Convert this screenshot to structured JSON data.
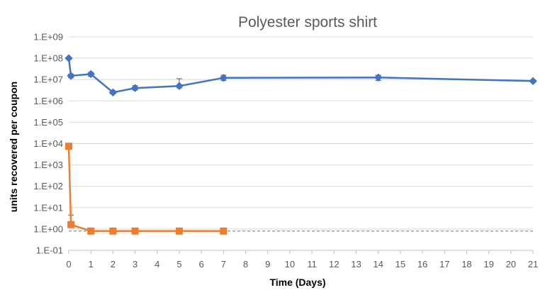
{
  "chart_data": {
    "type": "line",
    "title": "Polyester sports shirt",
    "xlabel": "Time (Days)",
    "ylabel": "units recovered per coupon",
    "y_scale": "log",
    "ylim": [
      0.1,
      1000000000
    ],
    "xlim": [
      0,
      21
    ],
    "x_ticks": [
      "0",
      "1",
      "2",
      "3",
      "4",
      "5",
      "6",
      "7",
      "8",
      "9",
      "10",
      "11",
      "12",
      "13",
      "14",
      "15",
      "16",
      "17",
      "18",
      "19",
      "20",
      "21"
    ],
    "y_ticks": [
      "1.E-01",
      "1.E+00",
      "1.E+01",
      "1.E+02",
      "1.E+03",
      "1.E+04",
      "1.E+05",
      "1.E+06",
      "1.E+07",
      "1.E+08",
      "1.E+09"
    ],
    "grid": true,
    "reference_line": {
      "y": 0.8,
      "style": "dashed",
      "color": "#7f7f7f"
    },
    "series": [
      {
        "color": "#4472c4",
        "marker": "diamond",
        "x": [
          0,
          0.1,
          1,
          2,
          3,
          5,
          7,
          14,
          21
        ],
        "y": [
          100000000,
          15000000,
          18000000,
          2500000,
          4000000,
          5000000,
          12000000,
          12500000,
          8500000
        ],
        "error_high": [
          110000000,
          18000000,
          22000000,
          3000000,
          5200000,
          11000000,
          16000000,
          16000000,
          9500000
        ],
        "error_low": [
          90000000,
          12000000,
          14000000,
          2100000,
          3200000,
          4000000,
          9000000,
          9000000,
          7500000
        ]
      },
      {
        "color": "#ed7d31",
        "marker": "square",
        "x": [
          0,
          0.1,
          1,
          2,
          3,
          5,
          7
        ],
        "y": [
          7500,
          1.6,
          0.8,
          0.8,
          0.8,
          0.8,
          0.8
        ],
        "error_high": [
          7500,
          4.5,
          0.8,
          0.8,
          0.8,
          0.8,
          0.8
        ],
        "error_low": [
          7500,
          1.2,
          0.8,
          0.8,
          0.8,
          0.8,
          0.8
        ]
      }
    ]
  }
}
